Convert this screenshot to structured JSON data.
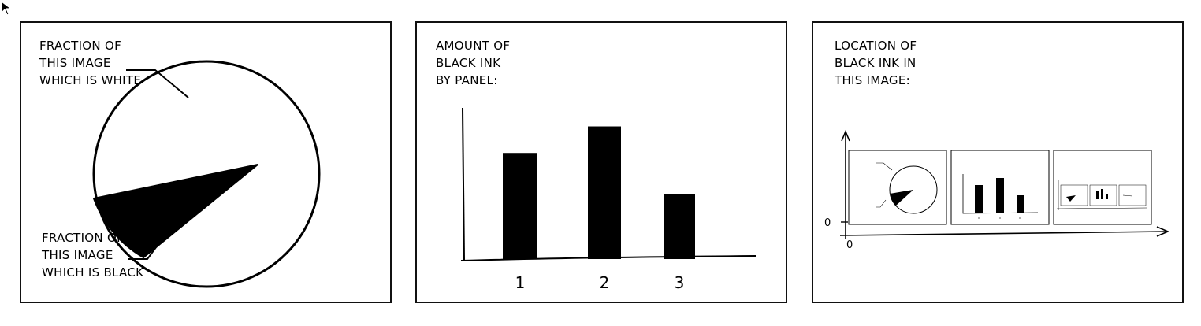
{
  "panels": [
    {
      "chart_data": {
        "type": "pie",
        "slices": [
          {
            "label": "FRACTION OF THIS IMAGE WHICH IS WHITE",
            "value": 0.89
          },
          {
            "label": "FRACTION OF THIS IMAGE WHICH IS BLACK",
            "value": 0.11
          }
        ]
      },
      "white_label": [
        "FRACTION OF",
        "THIS IMAGE",
        "WHICH IS WHITE"
      ],
      "black_label": [
        "FRACTION OF",
        "THIS IMAGE",
        "WHICH IS BLACK"
      ]
    },
    {
      "chart_data": {
        "type": "bar",
        "title": "AMOUNT OF BLACK INK BY PANEL:",
        "categories": [
          "1",
          "2",
          "3"
        ],
        "values": [
          0.72,
          0.9,
          0.44
        ],
        "ylim": [
          0,
          1
        ]
      },
      "title_lines": [
        "AMOUNT OF",
        "BLACK INK",
        "BY PANEL:"
      ]
    },
    {
      "chart_data": {
        "type": "scatter",
        "title": "LOCATION OF BLACK INK IN THIS IMAGE:",
        "x_origin_label": "0",
        "y_origin_label": "0",
        "description_of_mark": "recursive thumbnail of the full three-panel comic"
      },
      "title_lines": [
        "LOCATION OF",
        "BLACK INK IN",
        "THIS IMAGE:"
      ],
      "axis_zero_x": "0",
      "axis_zero_y": "0"
    }
  ],
  "colors": {
    "ink": "#000000",
    "paper": "#ffffff"
  }
}
